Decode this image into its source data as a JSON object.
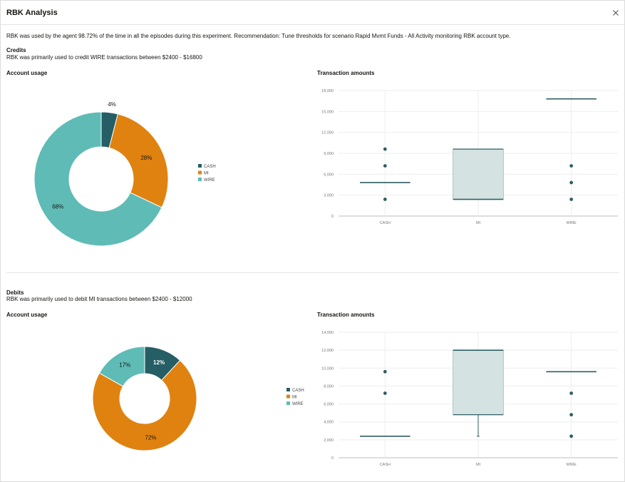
{
  "dialog": {
    "title": "RBK Analysis",
    "close_icon": "close-icon",
    "summary": "RBK was used by the agent 98.72% of the time in all the episodes during this experiment. Recommendation: Tune thresholds for scenario Rapid Mvmt Funds - All Activity monitoring RBK account type."
  },
  "colors": {
    "CASH": "#255e65",
    "MI": "#e08210",
    "WIRE": "#5fbbb6",
    "box_fill": "#d4e2e2",
    "box_stroke": "#2f5e63"
  },
  "credits": {
    "heading": "Credits",
    "description": "RBK was primarily used to credit WIRE transactions between $2400 - $16800",
    "account_usage_title": "Account usage",
    "transaction_amounts_title": "Transaction amounts"
  },
  "debits": {
    "heading": "Debits",
    "description": "RBK was primarily used to debit MI transactions between $2400 - $12000",
    "account_usage_title": "Account usage",
    "transaction_amounts_title": "Transaction amounts"
  },
  "chart_data": [
    {
      "id": "credits-usage",
      "type": "pie",
      "title": "Account usage",
      "categories": [
        "CASH",
        "MI",
        "WIRE"
      ],
      "values": [
        4,
        28,
        68
      ],
      "labels": [
        "4%",
        "28%",
        "68%"
      ],
      "legend": "right"
    },
    {
      "id": "credits-amounts",
      "type": "box",
      "title": "Transaction amounts",
      "categories": [
        "CASH",
        "MI",
        "WIRE"
      ],
      "yticks": [
        0,
        3000,
        6000,
        9000,
        12000,
        15000,
        18000
      ],
      "ytick_labels": [
        "0",
        "3,000",
        "6,000",
        "9,000",
        "12,000",
        "15,000",
        "18,000"
      ],
      "ylim": [
        0,
        18000
      ],
      "boxes": [
        {
          "category": "CASH",
          "q1": 4800,
          "q3": 4800,
          "median": 4800,
          "whisker_low": 4800,
          "whisker_high": 4800,
          "outliers": [
            2400,
            7200,
            9600
          ]
        },
        {
          "category": "MI",
          "q1": 2400,
          "q3": 9600,
          "median": 2400,
          "whisker_low": 2400,
          "whisker_high": 9600,
          "outliers": []
        },
        {
          "category": "WIRE",
          "q1": 16800,
          "q3": 16800,
          "median": 16800,
          "whisker_low": 16800,
          "whisker_high": 16800,
          "outliers": [
            2400,
            4800,
            7200
          ]
        }
      ]
    },
    {
      "id": "debits-usage",
      "type": "pie",
      "title": "Account usage",
      "categories": [
        "CASH",
        "MI",
        "WIRE"
      ],
      "values": [
        12,
        72,
        17
      ],
      "labels": [
        "12%",
        "72%",
        "17%"
      ],
      "legend": "right"
    },
    {
      "id": "debits-amounts",
      "type": "box",
      "title": "Transaction amounts",
      "categories": [
        "CASH",
        "MI",
        "WIRE"
      ],
      "yticks": [
        0,
        2000,
        4000,
        6000,
        8000,
        10000,
        12000,
        14000
      ],
      "ytick_labels": [
        "0",
        "2,000",
        "4,000",
        "6,000",
        "8,000",
        "10,000",
        "12,000",
        "14,000"
      ],
      "ylim": [
        0,
        14000
      ],
      "boxes": [
        {
          "category": "CASH",
          "q1": 2400,
          "q3": 2400,
          "median": 2400,
          "whisker_low": 2400,
          "whisker_high": 2400,
          "outliers": [
            7200,
            9600
          ]
        },
        {
          "category": "MI",
          "q1": 4800,
          "q3": 12000,
          "median": 12000,
          "whisker_low": 2400,
          "whisker_high": 12000,
          "outliers": []
        },
        {
          "category": "WIRE",
          "q1": 9600,
          "q3": 9600,
          "median": 9600,
          "whisker_low": 9600,
          "whisker_high": 9600,
          "outliers": [
            2400,
            4800,
            7200
          ]
        }
      ]
    }
  ]
}
